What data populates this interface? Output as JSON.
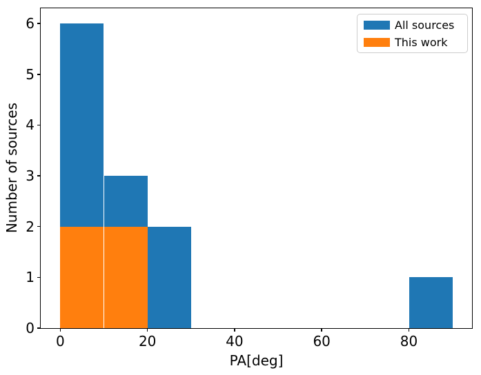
{
  "chart_data": {
    "type": "bar",
    "subtype": "histogram",
    "title": "",
    "xlabel": "PA[deg]",
    "ylabel": "Number of sources",
    "xlim": [
      -4.5,
      94.5
    ],
    "ylim": [
      0,
      6.3
    ],
    "xticks": [
      0,
      20,
      40,
      60,
      80
    ],
    "yticks": [
      0,
      1,
      2,
      3,
      4,
      5,
      6
    ],
    "bin_width": 10,
    "grid": false,
    "legend_position": "upper right",
    "series": [
      {
        "name": "All sources",
        "color": "#1f77b4",
        "bins": [
          {
            "start": 0,
            "end": 10,
            "count": 6
          },
          {
            "start": 10,
            "end": 20,
            "count": 3
          },
          {
            "start": 20,
            "end": 30,
            "count": 2
          },
          {
            "start": 80,
            "end": 90,
            "count": 1
          }
        ]
      },
      {
        "name": "This work",
        "color": "#ff7f0e",
        "bins": [
          {
            "start": 0,
            "end": 10,
            "count": 2
          },
          {
            "start": 10,
            "end": 20,
            "count": 2
          }
        ]
      }
    ],
    "legend_entries": [
      "All sources",
      "This work"
    ]
  },
  "colors": {
    "background": "#ffffff",
    "spine": "#000000",
    "tick_text": "#000000",
    "legend_border": "#cccccc",
    "all_sources": "#1f77b4",
    "this_work": "#ff7f0e"
  }
}
